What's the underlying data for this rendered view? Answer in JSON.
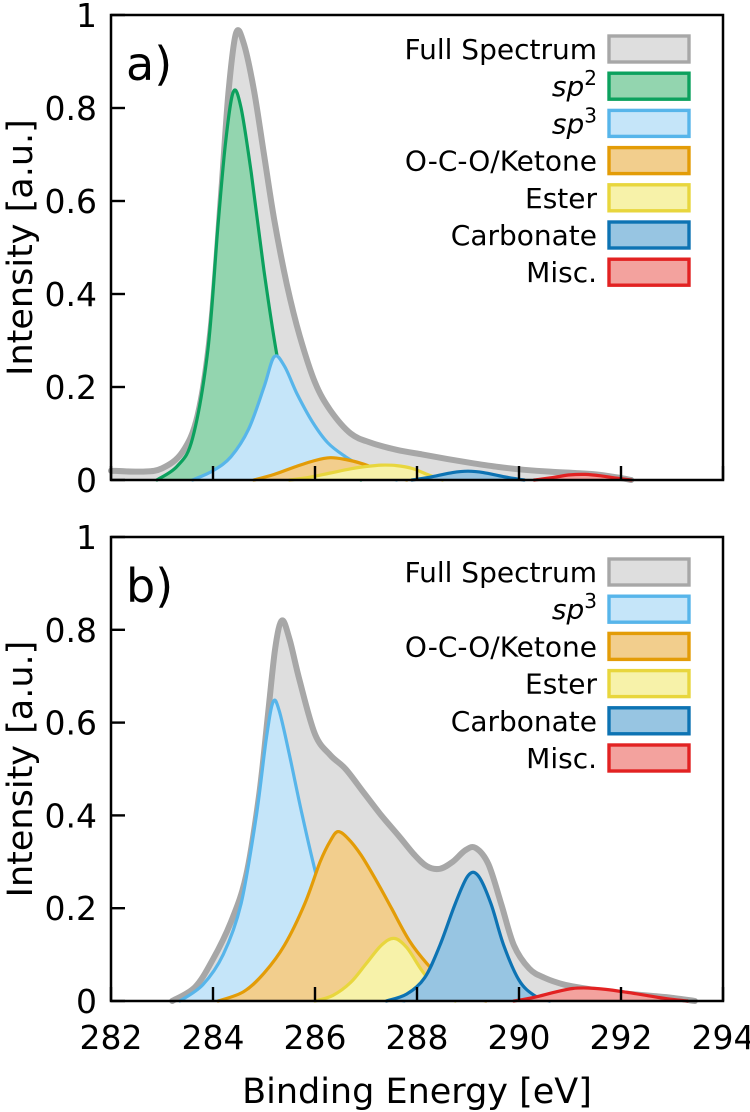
{
  "figure": {
    "x_axis": {
      "label": "Binding Energy [eV]",
      "range": [
        282,
        294
      ],
      "ticks": [
        282,
        284,
        286,
        288,
        290,
        292,
        294
      ],
      "tick_labels": [
        "282",
        "284",
        "286",
        "288",
        "290",
        "292",
        "294"
      ]
    },
    "y_axis": {
      "label": "Intensity [a.u.]",
      "range": [
        0,
        1
      ],
      "ticks": [
        0,
        0.2,
        0.4,
        0.6,
        0.8,
        1
      ],
      "tick_labels": [
        "0",
        "0.2",
        "0.4",
        "0.6",
        "0.8",
        "1"
      ]
    }
  },
  "chart_data": [
    {
      "type": "area",
      "panel_label": "a)",
      "xlabel": "Binding Energy [eV]",
      "ylabel": "Intensity [a.u.]",
      "xlim": [
        282,
        294
      ],
      "ylim": [
        0,
        1
      ],
      "grid": false,
      "legend_position": "upper right",
      "series": [
        {
          "name": "full-spectrum",
          "label": "Full Spectrum",
          "stroke": "#a7a7a7",
          "fill": "#dedede",
          "line_width": 6,
          "x": [
            282,
            282.6,
            283.0,
            283.4,
            283.7,
            283.95,
            284.15,
            284.3,
            284.45,
            284.6,
            284.8,
            285.0,
            285.2,
            285.45,
            285.7,
            286.0,
            286.3,
            286.7,
            287.1,
            287.6,
            288.1,
            288.6,
            289.1,
            289.6,
            290.1,
            290.6,
            291.1,
            291.5,
            291.9,
            292.2
          ],
          "y": [
            0.02,
            0.018,
            0.025,
            0.06,
            0.14,
            0.32,
            0.6,
            0.83,
            0.96,
            0.94,
            0.84,
            0.7,
            0.56,
            0.42,
            0.31,
            0.21,
            0.15,
            0.1,
            0.08,
            0.065,
            0.055,
            0.045,
            0.036,
            0.028,
            0.022,
            0.018,
            0.015,
            0.012,
            0.006,
            0
          ]
        },
        {
          "name": "sp2",
          "label": "sp",
          "label_sup": "2",
          "label_italic": true,
          "stroke": "#0ca15e",
          "fill": "#93d5af",
          "line_width": 3.2,
          "x": [
            282.9,
            283.3,
            283.6,
            283.9,
            284.1,
            284.25,
            284.4,
            284.55,
            284.75,
            285.0,
            285.25,
            285.5,
            285.75,
            286.0,
            286.3,
            286.6,
            286.9
          ],
          "y": [
            0,
            0.03,
            0.09,
            0.28,
            0.55,
            0.73,
            0.835,
            0.8,
            0.66,
            0.45,
            0.27,
            0.14,
            0.08,
            0.055,
            0.045,
            0.02,
            0
          ]
        },
        {
          "name": "sp3",
          "label": "sp",
          "label_sup": "3",
          "label_italic": true,
          "stroke": "#57b5ea",
          "fill": "#c5e5f9",
          "line_width": 3.2,
          "x": [
            283.6,
            284.0,
            284.35,
            284.7,
            285.0,
            285.2,
            285.4,
            285.65,
            285.95,
            286.25,
            286.6,
            286.95,
            287.3,
            287.6
          ],
          "y": [
            0,
            0.02,
            0.05,
            0.11,
            0.2,
            0.265,
            0.245,
            0.185,
            0.125,
            0.08,
            0.05,
            0.028,
            0.012,
            0
          ]
        },
        {
          "name": "oco-ketone",
          "label": "O-C-O/Ketone",
          "stroke": "#e39c07",
          "fill": "#f2ce8d",
          "line_width": 3.2,
          "x": [
            284.8,
            285.2,
            285.6,
            286.0,
            286.3,
            286.6,
            286.9,
            287.2,
            287.5,
            287.8
          ],
          "y": [
            0,
            0.012,
            0.028,
            0.042,
            0.048,
            0.044,
            0.036,
            0.024,
            0.01,
            0
          ]
        },
        {
          "name": "ester",
          "label": "Ester",
          "stroke": "#e8d63d",
          "fill": "#f7f2a9",
          "line_width": 3.2,
          "x": [
            285.5,
            285.9,
            286.3,
            286.7,
            287.0,
            287.3,
            287.6,
            287.9,
            288.2,
            288.5
          ],
          "y": [
            0,
            0.006,
            0.015,
            0.024,
            0.029,
            0.032,
            0.031,
            0.025,
            0.012,
            0
          ]
        },
        {
          "name": "carbonate",
          "label": "Carbonate",
          "stroke": "#0d73b3",
          "fill": "#97c5e2",
          "line_width": 3.2,
          "x": [
            287.9,
            288.3,
            288.7,
            289.0,
            289.3,
            289.7,
            290.1
          ],
          "y": [
            0,
            0.007,
            0.016,
            0.019,
            0.016,
            0.007,
            0
          ]
        },
        {
          "name": "misc",
          "label": "Misc.",
          "stroke": "#e22222",
          "fill": "#f3a29e",
          "line_width": 3.2,
          "x": [
            290.3,
            290.7,
            291.0,
            291.3,
            291.6,
            291.9,
            292.2
          ],
          "y": [
            0,
            0.006,
            0.011,
            0.012,
            0.009,
            0.004,
            0
          ]
        }
      ]
    },
    {
      "type": "area",
      "panel_label": "b)",
      "xlabel": "Binding Energy [eV]",
      "ylabel": "Intensity [a.u.]",
      "xlim": [
        282,
        294
      ],
      "ylim": [
        0,
        1
      ],
      "grid": false,
      "legend_position": "upper right",
      "series": [
        {
          "name": "full-spectrum",
          "label": "Full Spectrum",
          "stroke": "#a7a7a7",
          "fill": "#dedede",
          "line_width": 6,
          "x": [
            283.2,
            283.65,
            284.0,
            284.35,
            284.65,
            284.9,
            285.08,
            285.22,
            285.35,
            285.5,
            285.7,
            286.0,
            286.3,
            286.6,
            286.95,
            287.3,
            287.65,
            287.95,
            288.2,
            288.45,
            288.7,
            288.95,
            289.15,
            289.4,
            289.65,
            289.9,
            290.2,
            290.5,
            290.9,
            291.3,
            291.7,
            292.1,
            292.6,
            293.0,
            293.45
          ],
          "y": [
            0,
            0.03,
            0.09,
            0.17,
            0.27,
            0.44,
            0.62,
            0.76,
            0.82,
            0.78,
            0.69,
            0.575,
            0.53,
            0.5,
            0.45,
            0.4,
            0.355,
            0.315,
            0.29,
            0.285,
            0.3,
            0.325,
            0.33,
            0.295,
            0.21,
            0.12,
            0.07,
            0.05,
            0.035,
            0.027,
            0.021,
            0.016,
            0.011,
            0.007,
            0
          ]
        },
        {
          "name": "sp3",
          "label": "sp",
          "label_sup": "3",
          "label_italic": true,
          "stroke": "#57b5ea",
          "fill": "#c5e5f9",
          "line_width": 3.2,
          "x": [
            283.35,
            283.8,
            284.2,
            284.55,
            284.85,
            285.05,
            285.18,
            285.3,
            285.5,
            285.75,
            286.05,
            286.35,
            286.7,
            287.05,
            287.4,
            287.75
          ],
          "y": [
            0,
            0.035,
            0.1,
            0.21,
            0.4,
            0.57,
            0.645,
            0.625,
            0.53,
            0.4,
            0.26,
            0.15,
            0.07,
            0.03,
            0.01,
            0
          ]
        },
        {
          "name": "oco-ketone",
          "label": "O-C-O/Ketone",
          "stroke": "#e39c07",
          "fill": "#f2ce8d",
          "line_width": 3.2,
          "x": [
            284.1,
            284.6,
            285.0,
            285.4,
            285.8,
            286.1,
            286.3,
            286.45,
            286.65,
            286.9,
            287.2,
            287.5,
            287.85,
            288.2,
            288.6,
            289.0,
            289.35
          ],
          "y": [
            0,
            0.02,
            0.06,
            0.12,
            0.21,
            0.3,
            0.345,
            0.365,
            0.35,
            0.315,
            0.26,
            0.2,
            0.13,
            0.08,
            0.035,
            0.012,
            0
          ]
        },
        {
          "name": "ester",
          "label": "Ester",
          "stroke": "#e8d63d",
          "fill": "#f7f2a9",
          "line_width": 3.2,
          "x": [
            286.0,
            286.35,
            286.7,
            287.0,
            287.3,
            287.55,
            287.8,
            288.1,
            288.4,
            288.75
          ],
          "y": [
            0,
            0.012,
            0.04,
            0.08,
            0.12,
            0.135,
            0.115,
            0.065,
            0.025,
            0
          ]
        },
        {
          "name": "carbonate",
          "label": "Carbonate",
          "stroke": "#0d73b3",
          "fill": "#97c5e2",
          "line_width": 3.2,
          "x": [
            287.4,
            287.8,
            288.15,
            288.45,
            288.75,
            289.0,
            289.2,
            289.45,
            289.7,
            290.0,
            290.3,
            290.6
          ],
          "y": [
            0,
            0.015,
            0.05,
            0.12,
            0.21,
            0.27,
            0.27,
            0.21,
            0.12,
            0.045,
            0.012,
            0
          ]
        },
        {
          "name": "misc",
          "label": "Misc.",
          "stroke": "#e22222",
          "fill": "#f3a29e",
          "line_width": 3.2,
          "x": [
            289.9,
            290.3,
            290.7,
            291.05,
            291.35,
            291.7,
            292.1,
            292.5,
            292.9,
            293.3
          ],
          "y": [
            0,
            0.008,
            0.019,
            0.027,
            0.028,
            0.025,
            0.019,
            0.012,
            0.005,
            0
          ]
        }
      ]
    }
  ]
}
